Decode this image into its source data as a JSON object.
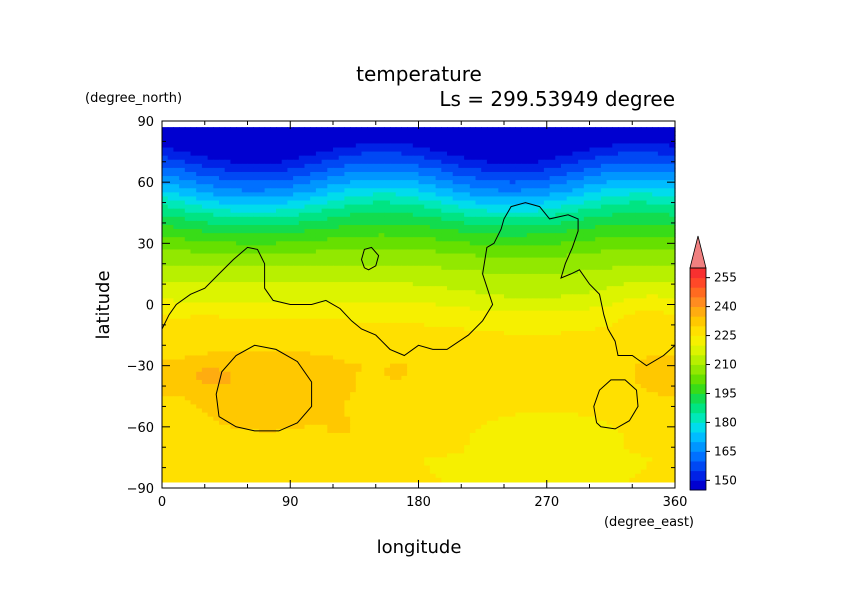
{
  "chart_data": {
    "type": "heatmap",
    "title": "temperature",
    "subtitle": "Ls = 299.53949 degree",
    "xlabel": "longitude",
    "ylabel": "latitude",
    "x_units": "(degree_east)",
    "y_units": "(degree_north)",
    "xlim": [
      0,
      360
    ],
    "ylim": [
      -90,
      90
    ],
    "x_ticks": [
      "0",
      "90",
      "180",
      "270",
      "360"
    ],
    "y_ticks": [
      "90",
      "60",
      "30",
      "0",
      "−30",
      "−60",
      "−90"
    ],
    "x_tick_values": [
      0,
      90,
      180,
      270,
      360
    ],
    "y_tick_values": [
      90,
      60,
      30,
      0,
      -30,
      -60,
      -90
    ],
    "data_lat_range": [
      -87,
      87
    ],
    "colorbar": {
      "levels": [
        145,
        150,
        155,
        160,
        165,
        170,
        175,
        180,
        185,
        190,
        195,
        200,
        205,
        210,
        215,
        220,
        225,
        230,
        235,
        240,
        245,
        250,
        255,
        260
      ],
      "labels": [
        "150",
        "165",
        "180",
        "195",
        "210",
        "225",
        "240",
        "255"
      ],
      "label_values": [
        150,
        165,
        180,
        195,
        210,
        225,
        240,
        255
      ],
      "colors": [
        "#0000d0",
        "#0022e6",
        "#0048f4",
        "#0070ff",
        "#0096ff",
        "#00bcff",
        "#00dcec",
        "#00e8b8",
        "#00e482",
        "#12dc4e",
        "#38dc18",
        "#66e000",
        "#92e800",
        "#b8f000",
        "#dcf400",
        "#f6f000",
        "#ffe000",
        "#ffc800",
        "#ffac10",
        "#ff8c20",
        "#ff6a20",
        "#ff4828",
        "#f83030"
      ],
      "extend_color": "#f08080"
    },
    "temperature_lat_profile": [
      {
        "lat": 87,
        "t": 147
      },
      {
        "lat": 75,
        "t": 149
      },
      {
        "lat": 65,
        "t": 160
      },
      {
        "lat": 55,
        "t": 172
      },
      {
        "lat": 45,
        "t": 186
      },
      {
        "lat": 35,
        "t": 197
      },
      {
        "lat": 25,
        "t": 206
      },
      {
        "lat": 15,
        "t": 213
      },
      {
        "lat": 5,
        "t": 218
      },
      {
        "lat": -5,
        "t": 224
      },
      {
        "lat": -15,
        "t": 227
      },
      {
        "lat": -30,
        "t": 229
      },
      {
        "lat": -45,
        "t": 228
      },
      {
        "lat": -60,
        "t": 227
      },
      {
        "lat": -75,
        "t": 225
      },
      {
        "lat": -87,
        "t": 225
      }
    ],
    "temperature_patches": [
      {
        "lon": 75,
        "lat": -45,
        "rlon": 55,
        "rlat": 22,
        "dt": 6
      },
      {
        "lon": 30,
        "lat": -35,
        "rlon": 22,
        "rlat": 7,
        "dt": 5
      },
      {
        "lon": 350,
        "lat": -35,
        "rlon": 15,
        "rlat": 8,
        "dt": 5
      },
      {
        "lon": 125,
        "lat": -60,
        "rlon": 8,
        "rlat": 5,
        "dt": 4
      },
      {
        "lon": 165,
        "lat": -33,
        "rlon": 6,
        "rlat": 4,
        "dt": 4
      },
      {
        "lon": 30,
        "lat": -10,
        "rlon": 8,
        "rlat": 6,
        "dt": 4
      },
      {
        "lon": 270,
        "lat": -62,
        "rlon": 45,
        "rlat": 10,
        "dt": -6
      },
      {
        "lon": 260,
        "lat": 5,
        "rlon": 60,
        "rlat": 22,
        "dt": -4
      },
      {
        "lon": 340,
        "lat": -5,
        "rlon": 20,
        "rlat": 15,
        "dt": 3
      }
    ],
    "contours": [
      {
        "name": "continent-outline",
        "points": [
          [
            0,
            -12
          ],
          [
            5,
            -5
          ],
          [
            10,
            0
          ],
          [
            20,
            5
          ],
          [
            30,
            8
          ],
          [
            40,
            15
          ],
          [
            50,
            22
          ],
          [
            60,
            28
          ],
          [
            67,
            27
          ],
          [
            72,
            20
          ],
          [
            72,
            8
          ],
          [
            78,
            2
          ],
          [
            90,
            0
          ],
          [
            105,
            0
          ],
          [
            115,
            2
          ],
          [
            125,
            -2
          ],
          [
            133,
            -8
          ],
          [
            140,
            -12
          ],
          [
            150,
            -15
          ],
          [
            160,
            -22
          ],
          [
            170,
            -25
          ],
          [
            180,
            -20
          ],
          [
            190,
            -22
          ],
          [
            200,
            -22
          ],
          [
            215,
            -15
          ],
          [
            225,
            -8
          ],
          [
            232,
            0
          ],
          [
            225,
            15
          ],
          [
            228,
            28
          ],
          [
            233,
            30
          ],
          [
            238,
            37
          ],
          [
            240,
            42
          ],
          [
            245,
            48
          ],
          [
            255,
            50
          ],
          [
            265,
            48
          ],
          [
            272,
            42
          ],
          [
            285,
            44
          ],
          [
            292,
            42
          ],
          [
            292,
            36
          ],
          [
            288,
            28
          ],
          [
            283,
            20
          ],
          [
            280,
            13
          ],
          [
            287,
            15
          ],
          [
            293,
            17
          ],
          [
            300,
            10
          ],
          [
            307,
            5
          ],
          [
            310,
            -5
          ],
          [
            313,
            -12
          ],
          [
            318,
            -18
          ],
          [
            320,
            -25
          ],
          [
            330,
            -25
          ],
          [
            340,
            -30
          ],
          [
            352,
            -25
          ],
          [
            360,
            -20
          ]
        ]
      },
      {
        "name": "north-ring",
        "points": [
          [
            142,
            18
          ],
          [
            140,
            22
          ],
          [
            142,
            27
          ],
          [
            147,
            28
          ],
          [
            152,
            24
          ],
          [
            150,
            19
          ],
          [
            145,
            17
          ],
          [
            142,
            18
          ]
        ]
      },
      {
        "name": "south-ring-west",
        "points": [
          [
            40,
            -55
          ],
          [
            38,
            -44
          ],
          [
            42,
            -33
          ],
          [
            52,
            -25
          ],
          [
            65,
            -20
          ],
          [
            80,
            -22
          ],
          [
            95,
            -28
          ],
          [
            105,
            -38
          ],
          [
            105,
            -50
          ],
          [
            95,
            -58
          ],
          [
            82,
            -62
          ],
          [
            65,
            -62
          ],
          [
            52,
            -60
          ],
          [
            40,
            -55
          ]
        ]
      },
      {
        "name": "south-ring-east",
        "points": [
          [
            305,
            -58
          ],
          [
            303,
            -50
          ],
          [
            307,
            -42
          ],
          [
            315,
            -37
          ],
          [
            325,
            -37
          ],
          [
            333,
            -42
          ],
          [
            334,
            -50
          ],
          [
            328,
            -57
          ],
          [
            318,
            -61
          ],
          [
            308,
            -60
          ],
          [
            305,
            -58
          ]
        ]
      }
    ]
  }
}
